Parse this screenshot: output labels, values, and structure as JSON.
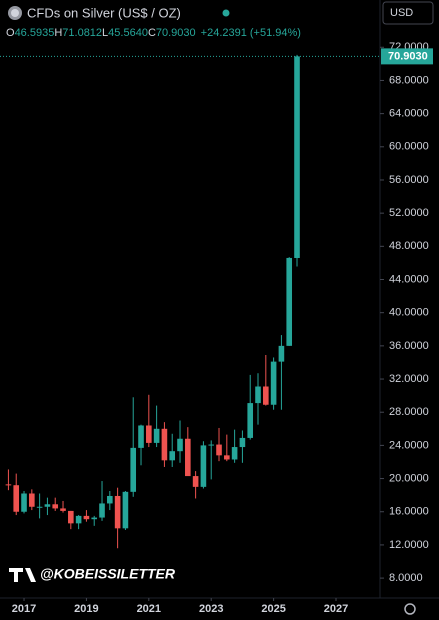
{
  "header": {
    "title": "CFDs on Silver (US$ / OZ)",
    "currency": "USD",
    "ohlc": [
      {
        "key": "O",
        "value": "46.5935"
      },
      {
        "key": "H",
        "value": "71.0812"
      },
      {
        "key": "L",
        "value": "45.5640"
      },
      {
        "key": "C",
        "value": "70.9030"
      }
    ],
    "change": "+24.2391 (+51.94%)",
    "watermark": "@KOBEISSILETTER"
  },
  "chart_data": {
    "type": "candlestick",
    "x": [
      2016.5,
      2016.75,
      2017,
      2017.25,
      2017.5,
      2017.75,
      2018,
      2018.25,
      2018.5,
      2018.75,
      2019,
      2019.25,
      2019.5,
      2019.75,
      2020,
      2020.25,
      2020.5,
      2020.75,
      2021,
      2021.25,
      2021.5,
      2021.75,
      2022,
      2022.25,
      2022.5,
      2022.75,
      2023,
      2023.25,
      2023.5,
      2023.75,
      2024,
      2024.25,
      2024.5,
      2024.75,
      2025,
      2025.25,
      2025.5,
      2025.75
    ],
    "open": [
      19.3,
      19.2,
      16.0,
      18.2,
      16.6,
      16.6,
      16.9,
      16.4,
      16.1,
      14.6,
      15.5,
      15.1,
      15.3,
      17.0,
      17.9,
      14.0,
      18.4,
      23.7,
      26.4,
      24.3,
      26.0,
      22.2,
      23.3,
      24.8,
      20.3,
      19.0,
      24.0,
      24.1,
      22.8,
      22.3,
      23.8,
      24.9,
      29.1,
      31.1,
      28.9,
      34.1,
      36.0,
      46.5935
    ],
    "high": [
      21.1,
      20.6,
      18.5,
      18.7,
      18.2,
      17.7,
      17.7,
      17.3,
      16.1,
      15.6,
      16.2,
      15.5,
      19.7,
      18.5,
      18.9,
      18.5,
      29.8,
      26.5,
      30.1,
      28.8,
      26.8,
      25.4,
      27.0,
      26.2,
      20.9,
      24.5,
      24.6,
      26.1,
      25.3,
      25.9,
      25.8,
      32.5,
      32.7,
      34.9,
      34.6,
      37.3,
      46.7,
      71.0812
    ],
    "low": [
      18.6,
      15.6,
      15.8,
      16.2,
      15.2,
      15.6,
      16.1,
      15.9,
      13.9,
      13.9,
      14.8,
      14.3,
      14.9,
      16.2,
      11.6,
      13.8,
      17.8,
      21.6,
      23.8,
      23.8,
      21.4,
      21.4,
      21.9,
      20.5,
      17.6,
      18.8,
      19.9,
      22.1,
      22.1,
      21.9,
      21.9,
      24.7,
      26.5,
      28.8,
      28.3,
      28.3,
      36.0,
      45.564
    ],
    "close": [
      19.2,
      16.0,
      18.2,
      16.6,
      16.6,
      16.9,
      16.4,
      16.1,
      14.6,
      15.5,
      15.1,
      15.3,
      17.0,
      17.9,
      14.0,
      18.4,
      23.7,
      26.4,
      24.3,
      26.0,
      22.2,
      23.3,
      24.8,
      20.3,
      19.0,
      24.0,
      24.1,
      22.8,
      22.3,
      23.8,
      24.9,
      29.1,
      31.1,
      28.9,
      34.1,
      36.0,
      46.6,
      70.903
    ],
    "up_color": "#26a69a",
    "down_color": "#ef5350",
    "last_price": {
      "value": 70.903,
      "label": "70.9030"
    },
    "xlim": [
      2016.23,
      2028.41
    ],
    "xticks": [
      2017,
      2019,
      2021,
      2023,
      2025,
      2027
    ],
    "ylim": [
      5.6,
      77.7
    ],
    "yticks": [
      {
        "value": 8,
        "label": "8.0000"
      },
      {
        "value": 12,
        "label": "12.0000"
      },
      {
        "value": 16,
        "label": "16.0000"
      },
      {
        "value": 20,
        "label": "20.0000"
      },
      {
        "value": 24,
        "label": "24.0000"
      },
      {
        "value": 28,
        "label": "28.0000"
      },
      {
        "value": 32,
        "label": "32.0000"
      },
      {
        "value": 36,
        "label": "36.0000"
      },
      {
        "value": 40,
        "label": "40.0000"
      },
      {
        "value": 44,
        "label": "44.0000"
      },
      {
        "value": 48,
        "label": "48.0000"
      },
      {
        "value": 52,
        "label": "52.0000"
      },
      {
        "value": 56,
        "label": "56.0000"
      },
      {
        "value": 60,
        "label": "60.0000"
      },
      {
        "value": 64,
        "label": "64.0000"
      },
      {
        "value": 68,
        "label": "68.0000"
      },
      {
        "value": 72,
        "label": "72.0000"
      }
    ]
  }
}
